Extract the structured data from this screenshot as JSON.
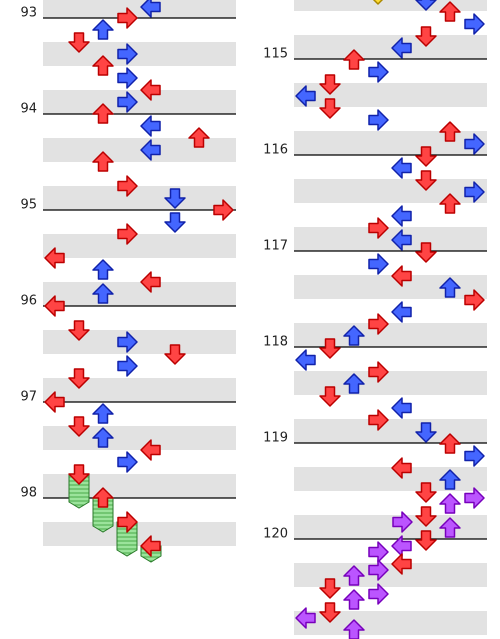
{
  "left_column": {
    "measures": [
      "93",
      "94",
      "95",
      "96",
      "97",
      "98"
    ]
  },
  "right_column": {
    "measures": [
      "115",
      "116",
      "117",
      "118",
      "119",
      "120"
    ]
  }
}
